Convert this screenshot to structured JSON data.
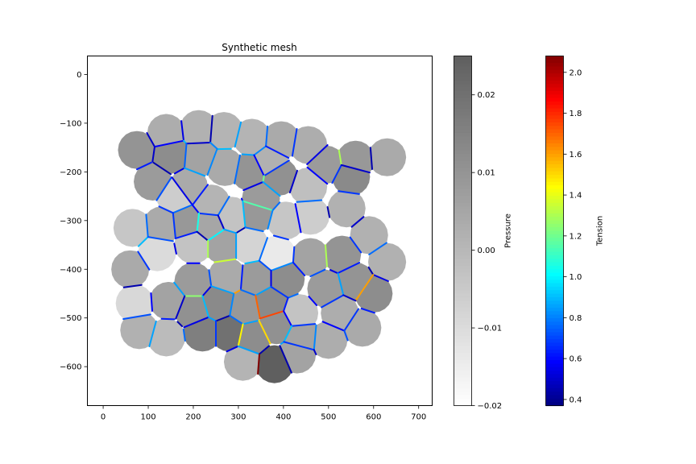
{
  "chart_data": {
    "type": "heatmap",
    "title": "Synthetic mesh",
    "xlabel": "",
    "ylabel": "",
    "xlim": [
      -35,
      730
    ],
    "ylim": [
      -680,
      38
    ],
    "xticks": [
      0,
      100,
      200,
      300,
      400,
      500,
      600,
      700
    ],
    "yticks": [
      0,
      -100,
      -200,
      -300,
      -400,
      -500,
      -600
    ],
    "grid": false,
    "cells": [
      {
        "x": 140,
        "y": -120,
        "p": 0.003
      },
      {
        "x": 212,
        "y": -112,
        "p": 0.002
      },
      {
        "x": 268,
        "y": -116,
        "p": 0.001
      },
      {
        "x": 330,
        "y": -130,
        "p": 0.001
      },
      {
        "x": 395,
        "y": -135,
        "p": 0.004
      },
      {
        "x": 455,
        "y": -145,
        "p": 0.003
      },
      {
        "x": 75,
        "y": -155,
        "p": 0.01
      },
      {
        "x": 150,
        "y": -165,
        "p": 0.012
      },
      {
        "x": 215,
        "y": -170,
        "p": 0.006
      },
      {
        "x": 270,
        "y": -190,
        "p": 0.004
      },
      {
        "x": 370,
        "y": -180,
        "p": 0.002
      },
      {
        "x": 495,
        "y": -185,
        "p": 0.008
      },
      {
        "x": 560,
        "y": -175,
        "p": 0.009
      },
      {
        "x": 630,
        "y": -170,
        "p": 0.004
      },
      {
        "x": 110,
        "y": -220,
        "p": 0.008
      },
      {
        "x": 190,
        "y": -230,
        "p": 0.004
      },
      {
        "x": 325,
        "y": -200,
        "p": 0.01
      },
      {
        "x": 390,
        "y": -210,
        "p": 0.011
      },
      {
        "x": 455,
        "y": -230,
        "p": -0.002
      },
      {
        "x": 550,
        "y": -210,
        "p": 0.013
      },
      {
        "x": 160,
        "y": -250,
        "p": -0.006
      },
      {
        "x": 240,
        "y": -265,
        "p": 0.001
      },
      {
        "x": 350,
        "y": -255,
        "p": 0.008
      },
      {
        "x": 460,
        "y": -290,
        "p": -0.006
      },
      {
        "x": 540,
        "y": -275,
        "p": 0.002
      },
      {
        "x": 65,
        "y": -315,
        "p": -0.004
      },
      {
        "x": 130,
        "y": -310,
        "p": 0.004
      },
      {
        "x": 185,
        "y": -305,
        "p": 0.009
      },
      {
        "x": 235,
        "y": -310,
        "p": 0.005
      },
      {
        "x": 285,
        "y": -290,
        "p": -0.003
      },
      {
        "x": 340,
        "y": -285,
        "p": 0.009
      },
      {
        "x": 405,
        "y": -300,
        "p": -0.004
      },
      {
        "x": 590,
        "y": -330,
        "p": 0.002
      },
      {
        "x": 120,
        "y": -365,
        "p": -0.01
      },
      {
        "x": 200,
        "y": -350,
        "p": -0.003
      },
      {
        "x": 265,
        "y": -350,
        "p": 0.006
      },
      {
        "x": 325,
        "y": -350,
        "p": -0.008
      },
      {
        "x": 385,
        "y": -370,
        "p": -0.014
      },
      {
        "x": 460,
        "y": -375,
        "p": 0.006
      },
      {
        "x": 530,
        "y": -370,
        "p": 0.01
      },
      {
        "x": 630,
        "y": -385,
        "p": 0.002
      },
      {
        "x": 60,
        "y": -400,
        "p": 0.004
      },
      {
        "x": 200,
        "y": -425,
        "p": 0.008
      },
      {
        "x": 275,
        "y": -415,
        "p": 0.004
      },
      {
        "x": 340,
        "y": -420,
        "p": 0.008
      },
      {
        "x": 405,
        "y": -420,
        "p": 0.012
      },
      {
        "x": 495,
        "y": -440,
        "p": 0.008
      },
      {
        "x": 560,
        "y": -425,
        "p": 0.01
      },
      {
        "x": 600,
        "y": -450,
        "p": 0.012
      },
      {
        "x": 70,
        "y": -470,
        "p": -0.009
      },
      {
        "x": 145,
        "y": -465,
        "p": 0.006
      },
      {
        "x": 200,
        "y": -485,
        "p": 0.011
      },
      {
        "x": 255,
        "y": -470,
        "p": 0.013
      },
      {
        "x": 315,
        "y": -480,
        "p": 0.009
      },
      {
        "x": 370,
        "y": -470,
        "p": 0.013
      },
      {
        "x": 435,
        "y": -490,
        "p": -0.003
      },
      {
        "x": 525,
        "y": -490,
        "p": 0.003
      },
      {
        "x": 80,
        "y": -525,
        "p": 0.002
      },
      {
        "x": 140,
        "y": -540,
        "p": -0.001
      },
      {
        "x": 220,
        "y": -530,
        "p": 0.016
      },
      {
        "x": 280,
        "y": -530,
        "p": 0.02
      },
      {
        "x": 330,
        "y": -540,
        "p": 0.012
      },
      {
        "x": 385,
        "y": -515,
        "p": 0.011
      },
      {
        "x": 440,
        "y": -540,
        "p": 0.006
      },
      {
        "x": 500,
        "y": -545,
        "p": 0.003
      },
      {
        "x": 575,
        "y": -520,
        "p": 0.004
      },
      {
        "x": 310,
        "y": -590,
        "p": 0.001
      },
      {
        "x": 380,
        "y": -595,
        "p": 0.025
      },
      {
        "x": 430,
        "y": -575,
        "p": 0.006
      }
    ],
    "highlight_edges": [
      {
        "a": 7,
        "b": 8,
        "t": 0.75
      },
      {
        "a": 11,
        "b": 12,
        "t": 1.3
      },
      {
        "a": 16,
        "b": 17,
        "t": 1.2
      },
      {
        "a": 22,
        "b": 30,
        "t": 1.15
      },
      {
        "a": 27,
        "b": 28,
        "t": 1.05
      },
      {
        "a": 28,
        "b": 35,
        "t": 1.0
      },
      {
        "a": 34,
        "b": 35,
        "t": 1.3
      },
      {
        "a": 35,
        "b": 43,
        "t": 1.35
      },
      {
        "a": 43,
        "b": 53,
        "t": 1.6
      },
      {
        "a": 53,
        "b": 54,
        "t": 1.7
      },
      {
        "a": 54,
        "b": 62,
        "t": 1.75
      },
      {
        "a": 61,
        "b": 62,
        "t": 1.5
      },
      {
        "a": 60,
        "b": 61,
        "t": 1.45
      },
      {
        "a": 62,
        "b": 67,
        "t": 1.9
      },
      {
        "a": 66,
        "b": 67,
        "t": 2.08
      },
      {
        "a": 38,
        "b": 39,
        "t": 1.3
      },
      {
        "a": 47,
        "b": 48,
        "t": 1.6
      },
      {
        "a": 42,
        "b": 51,
        "t": 1.25
      }
    ],
    "colorbars": [
      {
        "label": "Pressure",
        "colormap": "gray_r",
        "min": -0.02,
        "max": 0.025,
        "ticks": [
          0.02,
          0.01,
          0.0,
          -0.01,
          -0.02
        ],
        "ticklabels": [
          "0.02",
          "0.01",
          "0.00",
          "−0.01",
          "−0.02"
        ]
      },
      {
        "label": "Tension",
        "colormap": "jet",
        "min": 0.37,
        "max": 2.08,
        "ticks": [
          2.0,
          1.8,
          1.6,
          1.4,
          1.2,
          1.0,
          0.8,
          0.6,
          0.4
        ],
        "ticklabels": [
          "2.0",
          "1.8",
          "1.6",
          "1.4",
          "1.2",
          "1.0",
          "0.8",
          "0.6",
          "0.4"
        ]
      }
    ]
  }
}
